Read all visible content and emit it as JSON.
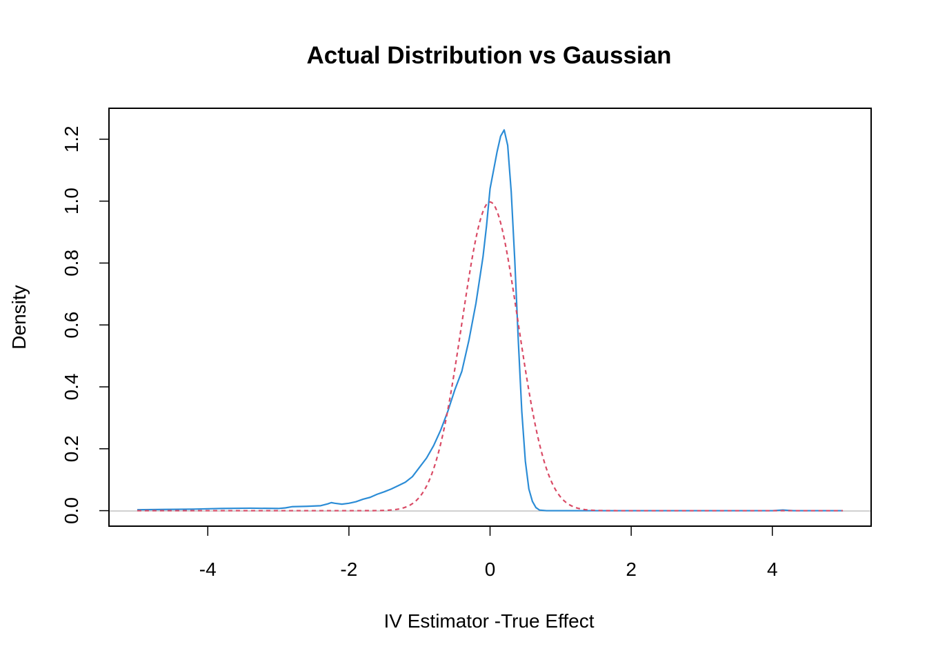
{
  "chart_data": {
    "type": "line",
    "title": "Actual Distribution vs Gaussian",
    "xlabel": "IV Estimator -True Effect",
    "ylabel": "Density",
    "xlim": [
      -5.4,
      5.4
    ],
    "ylim": [
      -0.05,
      1.3
    ],
    "x_ticks": [
      -4,
      -2,
      0,
      2,
      4
    ],
    "x_tick_labels": [
      "-4",
      "-2",
      "0",
      "2",
      "4"
    ],
    "y_ticks": [
      0.0,
      0.2,
      0.4,
      0.6,
      0.8,
      1.0,
      1.2
    ],
    "y_tick_labels": [
      "0.0",
      "0.2",
      "0.4",
      "0.6",
      "0.8",
      "1.0",
      "1.2"
    ],
    "grid": false,
    "zero_line": true,
    "series": [
      {
        "style": "solid",
        "color": "#2b8cd6",
        "x": [
          -5.0,
          -4.6,
          -4.2,
          -3.8,
          -3.4,
          -3.0,
          -2.9,
          -2.8,
          -2.6,
          -2.4,
          -2.3,
          -2.25,
          -2.2,
          -2.1,
          -2.0,
          -1.9,
          -1.8,
          -1.7,
          -1.6,
          -1.5,
          -1.4,
          -1.3,
          -1.2,
          -1.1,
          -1.0,
          -0.9,
          -0.8,
          -0.7,
          -0.6,
          -0.5,
          -0.4,
          -0.35,
          -0.3,
          -0.2,
          -0.1,
          -0.05,
          0.0,
          0.05,
          0.1,
          0.15,
          0.2,
          0.25,
          0.3,
          0.35,
          0.4,
          0.45,
          0.5,
          0.55,
          0.6,
          0.65,
          0.7,
          0.8,
          1.0,
          1.5,
          2.0,
          3.0,
          4.0,
          4.15,
          4.3,
          5.0
        ],
        "y": [
          0.003,
          0.004,
          0.005,
          0.007,
          0.008,
          0.007,
          0.009,
          0.013,
          0.014,
          0.016,
          0.022,
          0.026,
          0.024,
          0.021,
          0.024,
          0.029,
          0.037,
          0.043,
          0.053,
          0.061,
          0.07,
          0.081,
          0.092,
          0.11,
          0.14,
          0.17,
          0.21,
          0.26,
          0.32,
          0.39,
          0.45,
          0.5,
          0.55,
          0.67,
          0.82,
          0.92,
          1.04,
          1.1,
          1.16,
          1.21,
          1.23,
          1.18,
          1.03,
          0.81,
          0.55,
          0.32,
          0.16,
          0.07,
          0.03,
          0.01,
          0.002,
          0.0,
          0.0,
          0.0,
          0.0,
          0.0,
          0.0,
          0.002,
          0.0,
          0.0
        ]
      },
      {
        "style": "dashed",
        "color": "#d94a65",
        "gaussian": {
          "mean": 0.0,
          "sd": 0.4,
          "from": -5.0,
          "to": 5.0
        }
      }
    ]
  }
}
